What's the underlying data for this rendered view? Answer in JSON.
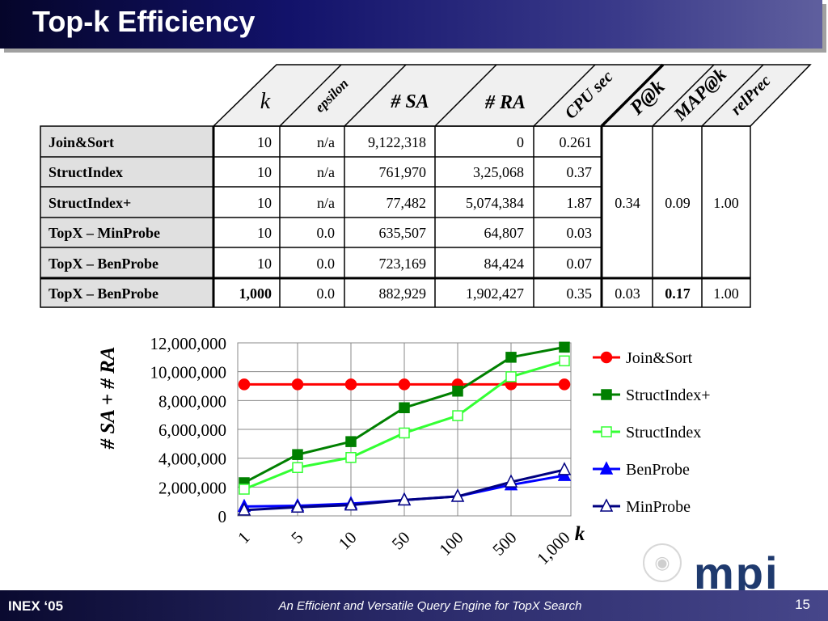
{
  "slide": {
    "title": "Top-k Efficiency",
    "footer_left": "INEX ‘05",
    "footer_center": "An Efficient and Versatile Query Engine for TopX Search",
    "page_number": "15",
    "logo_text": "mpi"
  },
  "table": {
    "headers": [
      "k",
      "epsilon",
      "# SA",
      "# RA",
      "CPU sec",
      "P@k",
      "MAP@k",
      "relPrec"
    ],
    "rows": [
      {
        "name": "Join&Sort",
        "k": "10",
        "epsilon": "n/a",
        "sa": "9,122,318",
        "ra": "0",
        "cpu": "0.261"
      },
      {
        "name": "StructIndex",
        "k": "10",
        "epsilon": "n/a",
        "sa": "761,970",
        "ra": "3,25,068",
        "cpu": "0.37"
      },
      {
        "name": "StructIndex+",
        "k": "10",
        "epsilon": "n/a",
        "sa": "77,482",
        "ra": "5,074,384",
        "cpu": "1.87"
      },
      {
        "name": "TopX – MinProbe",
        "k": "10",
        "epsilon": "0.0",
        "sa": "635,507",
        "ra": "64,807",
        "cpu": "0.03"
      },
      {
        "name": "TopX – BenProbe",
        "k": "10",
        "epsilon": "0.0",
        "sa": "723,169",
        "ra": "84,424",
        "cpu": "0.07"
      },
      {
        "name": "TopX – BenProbe",
        "k": "1,000",
        "epsilon": "0.0",
        "sa": "882,929",
        "ra": "1,902,427",
        "cpu": "0.35"
      }
    ],
    "merged_k10": {
      "pk": "0.34",
      "mapk": "0.09",
      "relprec": "1.00"
    },
    "last_row": {
      "pk": "0.03",
      "mapk": "0.17",
      "relprec": "1.00"
    }
  },
  "chart_data": {
    "type": "line",
    "categories": [
      "1",
      "5",
      "10",
      "50",
      "100",
      "500",
      "1,000"
    ],
    "xlabel": "k",
    "ylabel": "# SA + # RA",
    "ylim": [
      0,
      12000000
    ],
    "yticks": [
      "0",
      "2,000,000",
      "4,000,000",
      "6,000,000",
      "8,000,000",
      "10,000,000",
      "12,000,000"
    ],
    "grid": true,
    "legend_position": "right",
    "series": [
      {
        "name": "Join&Sort",
        "color": "#ff0000",
        "marker": "circle",
        "filled": true,
        "values": [
          9122318,
          9122318,
          9122318,
          9122318,
          9122318,
          9122318,
          9122318
        ]
      },
      {
        "name": "StructIndex+",
        "color": "#008000",
        "marker": "square",
        "filled": true,
        "values": [
          2300000,
          4250000,
          5150000,
          7500000,
          8650000,
          11000000,
          11700000
        ]
      },
      {
        "name": "StructIndex",
        "color": "#33ff33",
        "marker": "square",
        "filled": false,
        "values": [
          1850000,
          3350000,
          4050000,
          5750000,
          6950000,
          9650000,
          10750000
        ]
      },
      {
        "name": "BenProbe",
        "color": "#0000ff",
        "marker": "triangle",
        "filled": true,
        "values": [
          650000,
          700000,
          850000,
          1100000,
          1350000,
          2150000,
          2800000
        ]
      },
      {
        "name": "MinProbe",
        "color": "#000080",
        "marker": "triangle",
        "filled": false,
        "values": [
          400000,
          600000,
          750000,
          1100000,
          1350000,
          2350000,
          3200000
        ]
      }
    ]
  }
}
